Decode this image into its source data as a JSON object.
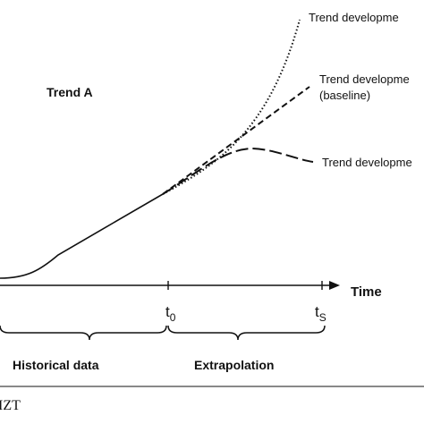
{
  "diagram": {
    "trend_label": "Trend A",
    "time_label": "Time",
    "t0_base": "t",
    "t0_sub": "0",
    "ts_base": "t",
    "ts_sub": "S",
    "scenario_upper": "Trend developme",
    "scenario_baseline_line1": "Trend developme",
    "scenario_baseline_line2": "(baseline)",
    "scenario_lower": "Trend developme",
    "historical_label": "Historical data",
    "extrapolation_label": "Extrapolation",
    "footer_text": "IZT"
  }
}
